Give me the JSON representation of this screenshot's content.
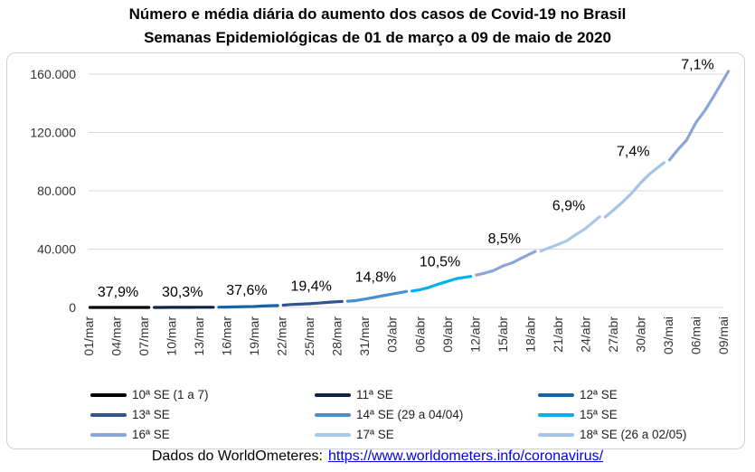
{
  "chart_data": {
    "type": "line",
    "title": "Número e média diária do aumento dos casos de Covid-19 no Brasil",
    "subtitle": "Semanas Epidemiológicas de 01 de março a 09 de maio de 2020",
    "xlabel": "",
    "ylabel": "",
    "ylim": [
      0,
      160000
    ],
    "yticks": [
      "0",
      "40.000",
      "80.000",
      "120.000",
      "160.000"
    ],
    "ytick_values": [
      0,
      40000,
      80000,
      120000,
      160000
    ],
    "xticks": [
      "01/mar",
      "04/mar",
      "07/mar",
      "10/mar",
      "13/mar",
      "16/mar",
      "19/mar",
      "22/mar",
      "25/mar",
      "28/mar",
      "31/mar",
      "03/abr",
      "06/abr",
      "09/abr",
      "12/abr",
      "15/abr",
      "18/abr",
      "21/abr",
      "24/abr",
      "27/abr",
      "30/abr",
      "03/mai",
      "06/mai",
      "09/mai"
    ],
    "grid": true,
    "legend_position": "bottom",
    "series": [
      {
        "name": "10ª SE (1 a 7)",
        "color": "#000000",
        "x": [
          "01/mar",
          "02/mar",
          "03/mar",
          "04/mar",
          "05/mar",
          "06/mar",
          "07/mar"
        ],
        "values": [
          2,
          2,
          2,
          4,
          8,
          13,
          19
        ],
        "label": "37,9%"
      },
      {
        "name": "11ª SE",
        "color": "#0e2447",
        "x": [
          "08/mar",
          "09/mar",
          "10/mar",
          "11/mar",
          "12/mar",
          "13/mar",
          "14/mar"
        ],
        "values": [
          25,
          25,
          34,
          52,
          77,
          98,
          121
        ],
        "label": "30,3%"
      },
      {
        "name": "12ª SE",
        "color": "#1663a8",
        "x": [
          "15/mar",
          "16/mar",
          "17/mar",
          "18/mar",
          "19/mar",
          "20/mar",
          "21/mar"
        ],
        "values": [
          200,
          234,
          346,
          529,
          640,
          970,
          1178
        ],
        "label": "37,6%"
      },
      {
        "name": "13ª SE",
        "color": "#2f5590",
        "x": [
          "22/mar",
          "23/mar",
          "24/mar",
          "25/mar",
          "26/mar",
          "27/mar",
          "28/mar"
        ],
        "values": [
          1546,
          1960,
          2247,
          2554,
          2985,
          3477,
          3904
        ],
        "label": "19,4%"
      },
      {
        "name": "14ª SE (29 a 04/04)",
        "color": "#4a8fcf",
        "x": [
          "29/mar",
          "30/mar",
          "31/mar",
          "01/abr",
          "02/abr",
          "03/abr",
          "04/abr"
        ],
        "values": [
          4256,
          4630,
          5717,
          6836,
          8044,
          9194,
          10360
        ],
        "label": "14,8%"
      },
      {
        "name": "15ª SE",
        "color": "#00b0f0",
        "x": [
          "05/abr",
          "06/abr",
          "07/abr",
          "08/abr",
          "09/abr",
          "10/abr",
          "11/abr"
        ],
        "values": [
          11254,
          12183,
          13717,
          15927,
          17857,
          19789,
          20727
        ],
        "label": "10,5%"
      },
      {
        "name": "16ª SE",
        "color": "#8aa6d8",
        "x": [
          "12/abr",
          "13/abr",
          "14/abr",
          "15/abr",
          "16/abr",
          "17/abr",
          "18/abr"
        ],
        "values": [
          22192,
          23430,
          25262,
          28320,
          30425,
          33682,
          36722
        ],
        "label": "8,5%"
      },
      {
        "name": "17ª SE",
        "color": "#a9c8e8",
        "x": [
          "19/abr",
          "20/abr",
          "21/abr",
          "22/abr",
          "23/abr",
          "24/abr",
          "25/abr"
        ],
        "values": [
          38654,
          40743,
          43079,
          45757,
          50036,
          54043,
          59324
        ],
        "label": "6,9%"
      },
      {
        "name": "18ª SE (26 a 02/05)",
        "color": "#a4c4e6",
        "x": [
          "26/abr",
          "27/abr",
          "28/abr",
          "29/abr",
          "30/abr",
          "01/mai",
          "02/mai"
        ],
        "values": [
          62000,
          66501,
          72000,
          78162,
          85380,
          91589,
          96559
        ],
        "label": "7,4%"
      },
      {
        "name": "",
        "color": "#8aa6d8",
        "x": [
          "03/mai",
          "04/mai",
          "05/mai",
          "06/mai",
          "07/mai",
          "08/mai",
          "09/mai"
        ],
        "values": [
          101147,
          107780,
          114715,
          126611,
          135106,
          145328,
          156061
        ],
        "label": "7,1%"
      }
    ]
  },
  "footer": {
    "source_label": "Dados do WorldOmeteres:",
    "source_link": "https://www.worldometers.info/coronavirus/"
  }
}
